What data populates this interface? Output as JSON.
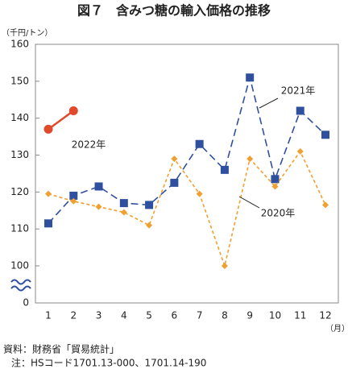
{
  "chart_data": {
    "type": "line",
    "title": "図７　含みつ糖の輸入価格の推移",
    "y_unit": "（千円/トン）",
    "x_unit": "（月）",
    "source": "資料：財務省「貿易統計」",
    "note": "注：HSコード1701.13-000、1701.14-190",
    "categories": [
      "1",
      "2",
      "3",
      "4",
      "5",
      "6",
      "7",
      "8",
      "9",
      "10",
      "11",
      "12"
    ],
    "series": [
      {
        "name": "2021年",
        "color": "#2f4f9f",
        "marker": "square",
        "linestyle": "dashed",
        "values": [
          111.5,
          119,
          121.5,
          117,
          116.5,
          122.5,
          133,
          126,
          151,
          123.5,
          142,
          135.5
        ]
      },
      {
        "name": "2020年",
        "color": "#f0a030",
        "marker": "diamond",
        "linestyle": "dotted",
        "values": [
          119.5,
          117.5,
          116,
          114.5,
          111,
          129,
          119.5,
          100,
          129,
          121.5,
          131,
          116.5
        ]
      },
      {
        "name": "2022年",
        "color": "#e04a2a",
        "marker": "circle",
        "linestyle": "solid",
        "values": [
          137,
          142,
          null,
          null,
          null,
          null,
          null,
          null,
          null,
          null,
          null,
          null
        ]
      }
    ],
    "ylim": [
      0,
      160
    ],
    "axis_break": [
      0,
      100
    ],
    "yticks": [
      0,
      100,
      110,
      120,
      130,
      140,
      150,
      160
    ],
    "grid": false
  }
}
